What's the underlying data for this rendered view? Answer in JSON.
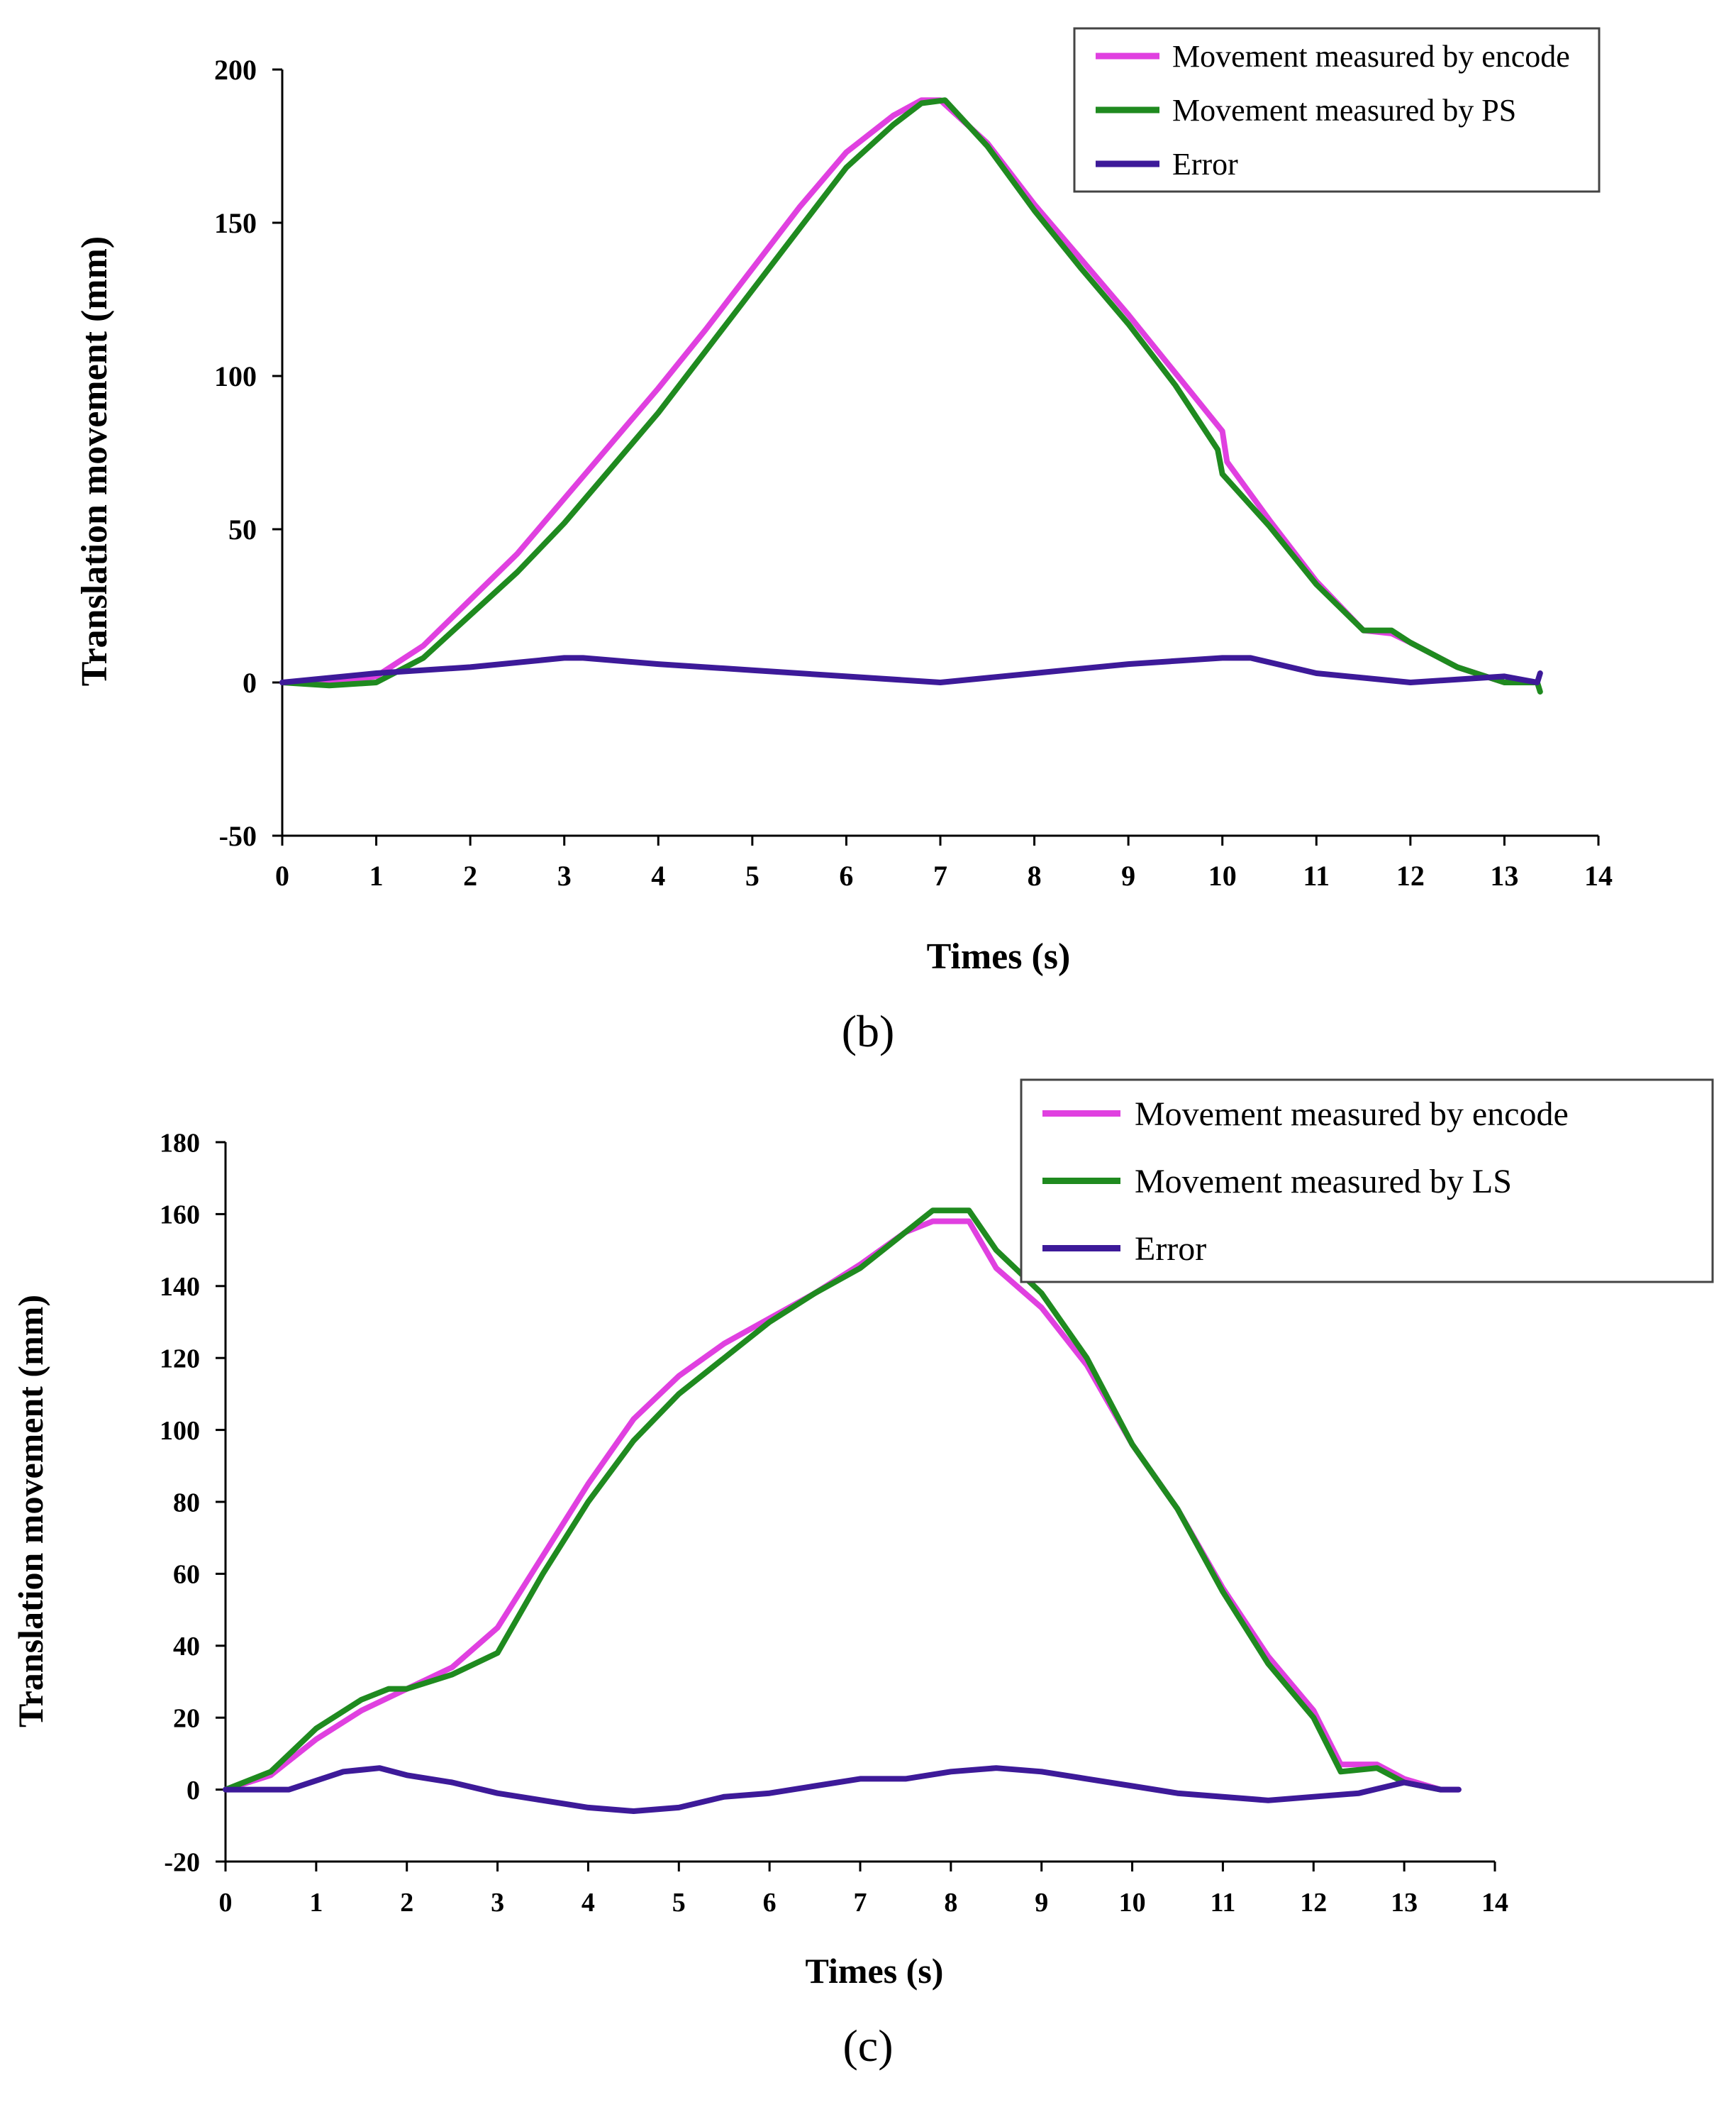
{
  "chart_data": [
    {
      "type": "line",
      "panel_label": "(b)",
      "title": "",
      "xlabel": "Times (s)",
      "ylabel": "Translation movement (mm)",
      "xlim": [
        0,
        14
      ],
      "ylim": [
        -50,
        200
      ],
      "xticks": [
        0,
        1,
        2,
        3,
        4,
        5,
        6,
        7,
        8,
        9,
        10,
        11,
        12,
        13,
        14
      ],
      "yticks": [
        -50,
        0,
        50,
        100,
        150,
        200
      ],
      "legend_position": "top-right",
      "grid": false,
      "series": [
        {
          "name": "Movement measured by encode",
          "color": "#e040e0",
          "x": [
            0,
            0.5,
            1,
            1.5,
            2,
            2.5,
            3,
            3.5,
            4,
            4.5,
            5,
            5.5,
            6,
            6.5,
            6.8,
            7,
            7.5,
            8,
            8.5,
            9,
            9.5,
            10,
            10.05,
            10.5,
            11,
            11.5,
            11.8,
            12,
            12.5,
            13,
            13.35
          ],
          "y": [
            0,
            0,
            2,
            12,
            27,
            42,
            60,
            78,
            96,
            115,
            135,
            155,
            173,
            185,
            190,
            190,
            176,
            156,
            138,
            120,
            101,
            82,
            72,
            53,
            33,
            17,
            16,
            13,
            5,
            0,
            0
          ]
        },
        {
          "name": "Movement measured by PS",
          "color": "#1f8a1f",
          "x": [
            0,
            0.5,
            1,
            1.5,
            2,
            2.5,
            3,
            3.5,
            4,
            4.5,
            5,
            5.5,
            6,
            6.5,
            6.8,
            7.05,
            7.5,
            8,
            8.5,
            9,
            9.5,
            9.95,
            10,
            10.5,
            11,
            11.5,
            11.8,
            12,
            12.5,
            13,
            13.35,
            13.38
          ],
          "y": [
            0,
            -1,
            0,
            8,
            22,
            36,
            52,
            70,
            88,
            108,
            128,
            148,
            168,
            182,
            189,
            190,
            175,
            154,
            135,
            117,
            97,
            76,
            68,
            51,
            32,
            17,
            17,
            13,
            5,
            0,
            0,
            -3
          ]
        },
        {
          "name": "Error",
          "color": "#3d1a99",
          "x": [
            0,
            1,
            2,
            3,
            3.2,
            4,
            5,
            6,
            7,
            8,
            9,
            10,
            10.3,
            11,
            12,
            12.5,
            13,
            13.35,
            13.38
          ],
          "y": [
            0,
            3,
            5,
            8,
            8,
            6,
            4,
            2,
            0,
            3,
            6,
            8,
            8,
            3,
            0,
            1,
            2,
            0,
            3
          ]
        }
      ]
    },
    {
      "type": "line",
      "panel_label": "(c)",
      "title": "",
      "xlabel": "Times (s)",
      "ylabel": "Translation movement (mm)",
      "xlim": [
        0,
        14
      ],
      "ylim": [
        -20,
        180
      ],
      "xticks": [
        0,
        1,
        2,
        3,
        4,
        5,
        6,
        7,
        8,
        9,
        10,
        11,
        12,
        13,
        14
      ],
      "yticks": [
        -20,
        0,
        20,
        40,
        60,
        80,
        100,
        120,
        140,
        160,
        180
      ],
      "legend_position": "top-right",
      "grid": false,
      "series": [
        {
          "name": "Movement measured by encode",
          "color": "#e040e0",
          "x": [
            0,
            0.5,
            1,
            1.5,
            2,
            2.5,
            3,
            3.5,
            4,
            4.5,
            5,
            5.5,
            6,
            6.5,
            7,
            7.5,
            7.8,
            8.2,
            8.5,
            9,
            9.5,
            10,
            10.5,
            11,
            11.5,
            12,
            12.3,
            12.7,
            13,
            13.4,
            13.6
          ],
          "y": [
            0,
            4,
            14,
            22,
            28,
            34,
            45,
            65,
            85,
            103,
            115,
            124,
            131,
            138,
            146,
            155,
            158,
            158,
            145,
            134,
            118,
            96,
            78,
            56,
            37,
            22,
            7,
            7,
            3,
            0,
            0
          ]
        },
        {
          "name": "Movement measured by LS",
          "color": "#1f8a1f",
          "x": [
            0,
            0.5,
            1,
            1.5,
            1.8,
            2,
            2.5,
            3,
            3.5,
            4,
            4.5,
            5,
            5.5,
            6,
            6.5,
            7,
            7.5,
            7.8,
            8.2,
            8.5,
            9,
            9.5,
            10,
            10.5,
            11,
            11.5,
            12,
            12.3,
            12.7,
            13,
            13.4
          ],
          "y": [
            0,
            5,
            17,
            25,
            28,
            28,
            32,
            38,
            60,
            80,
            97,
            110,
            120,
            130,
            138,
            145,
            155,
            161,
            161,
            150,
            138,
            120,
            96,
            78,
            55,
            35,
            20,
            5,
            6,
            2,
            0
          ]
        },
        {
          "name": "Error",
          "color": "#3d1a99",
          "x": [
            0,
            0.7,
            1.3,
            1.7,
            2,
            2.5,
            3,
            3.5,
            4,
            4.5,
            5,
            5.5,
            6,
            6.5,
            7,
            7.5,
            8,
            8.5,
            9,
            9.5,
            10,
            10.5,
            11,
            11.5,
            12,
            12.5,
            13,
            13.4,
            13.6
          ],
          "y": [
            0,
            0,
            5,
            6,
            4,
            2,
            -1,
            -3,
            -5,
            -6,
            -5,
            -2,
            -1,
            1,
            3,
            3,
            5,
            6,
            5,
            3,
            1,
            -1,
            -2,
            -3,
            -2,
            -1,
            2,
            0,
            0
          ]
        }
      ]
    }
  ]
}
